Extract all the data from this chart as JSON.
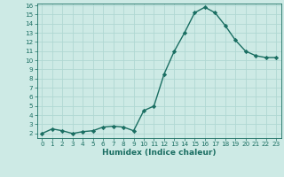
{
  "x": [
    0,
    1,
    2,
    3,
    4,
    5,
    6,
    7,
    8,
    9,
    10,
    11,
    12,
    13,
    14,
    15,
    16,
    17,
    18,
    19,
    20,
    21,
    22,
    23
  ],
  "y": [
    2.0,
    2.5,
    2.3,
    2.0,
    2.2,
    2.3,
    2.7,
    2.8,
    2.7,
    2.3,
    4.5,
    5.0,
    8.5,
    11.0,
    13.0,
    15.2,
    15.8,
    15.2,
    13.8,
    12.2,
    11.0,
    10.5,
    10.3,
    10.3
  ],
  "line_color": "#1a6e62",
  "marker": "D",
  "marker_size": 2.2,
  "background_color": "#cdeae5",
  "grid_color": "#b0d8d2",
  "xlabel": "Humidex (Indice chaleur)",
  "xlim": [
    -0.5,
    23.5
  ],
  "ylim": [
    1.5,
    16.2
  ],
  "yticks": [
    2,
    3,
    4,
    5,
    6,
    7,
    8,
    9,
    10,
    11,
    12,
    13,
    14,
    15,
    16
  ],
  "xticks": [
    0,
    1,
    2,
    3,
    4,
    5,
    6,
    7,
    8,
    9,
    10,
    11,
    12,
    13,
    14,
    15,
    16,
    17,
    18,
    19,
    20,
    21,
    22,
    23
  ],
  "tick_fontsize": 5.2,
  "xlabel_fontsize": 6.5,
  "line_width": 1.0
}
